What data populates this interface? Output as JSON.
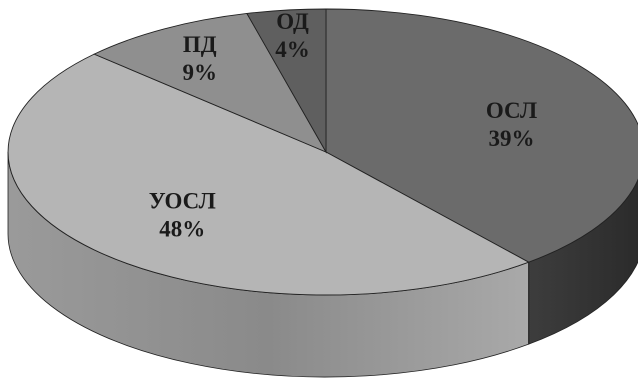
{
  "chart_data": {
    "type": "pie",
    "style": "3d",
    "title": "",
    "slices": [
      {
        "label": "ОСЛ",
        "value": 39,
        "value_label": "39%",
        "color": "#6b6b6b",
        "side_color": "#3a3a3a"
      },
      {
        "label": "УОСЛ",
        "value": 48,
        "value_label": "48%",
        "color": "#b5b5b5",
        "side_color": "#8f8f8f"
      },
      {
        "label": "ПД",
        "value": 9,
        "value_label": "9%",
        "color": "#8f8f8f",
        "side_color": "#6e6e6e"
      },
      {
        "label": "ОД",
        "value": 4,
        "value_label": "4%",
        "color": "#5f5f5f",
        "side_color": "#404040"
      }
    ]
  }
}
